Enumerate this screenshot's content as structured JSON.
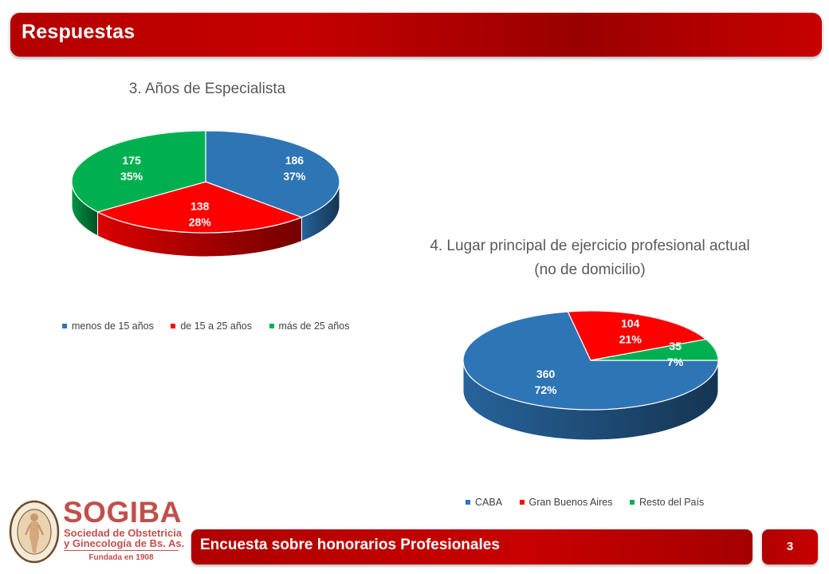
{
  "header": {
    "title": "Respuestas"
  },
  "chart_data": [
    {
      "type": "pie",
      "title": "3. Años de Especialista",
      "categories": [
        "menos de 15 años",
        "de 15 a 25 años",
        "más de 25 años"
      ],
      "values": [
        186,
        138,
        175
      ],
      "percent_labels": [
        "37%",
        "28%",
        "35%"
      ],
      "colors": [
        "#2e75b6",
        "#ff0000",
        "#00b050"
      ],
      "legend_position": "bottom"
    },
    {
      "type": "pie",
      "title": "4. Lugar principal de ejercicio profesional actual (no de domicilio)",
      "title_lines": [
        "4. Lugar principal de ejercicio profesional actual",
        "(no de domicilio)"
      ],
      "categories": [
        "CABA",
        "Gran Buenos Aires",
        "Resto del País"
      ],
      "values": [
        360,
        104,
        35
      ],
      "percent_labels": [
        "72%",
        "21%",
        "7%"
      ],
      "colors": [
        "#2e75b6",
        "#ff0000",
        "#00b050"
      ],
      "legend_position": "bottom"
    }
  ],
  "footer": {
    "title": "Encuesta sobre honorarios Profesionales",
    "page_number": "3"
  },
  "logo": {
    "name": "SOGIBA",
    "subtitle_line1": "Sociedad de Obstetricia",
    "subtitle_line2": "y Ginecología de Bs. As.",
    "founded": "Fundada en 1908"
  }
}
